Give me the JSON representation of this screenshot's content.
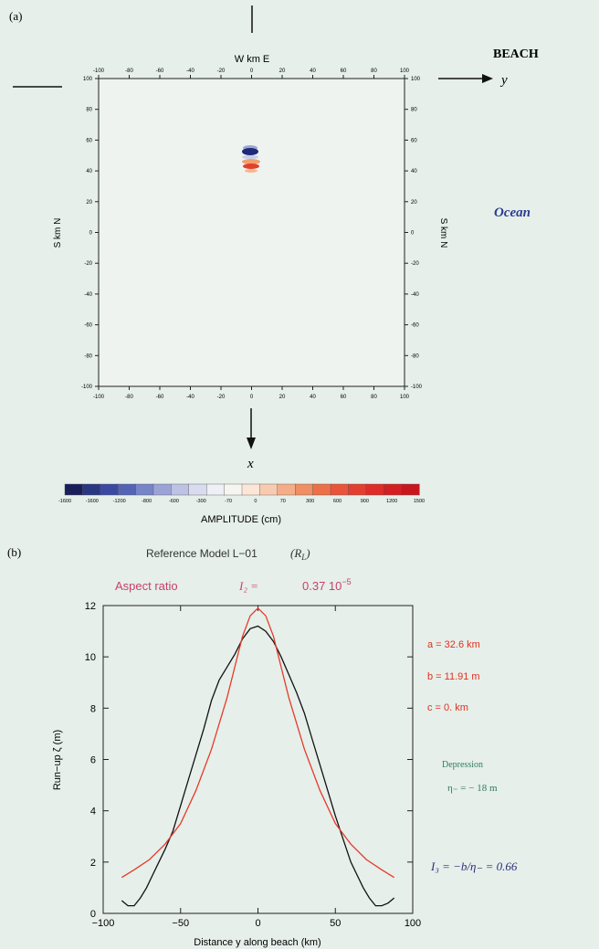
{
  "panel_a": {
    "label": "(a)",
    "top_axis_label": "W km E",
    "left_axis_label": "S km N",
    "right_axis_label": "S km N",
    "x_arrow_label": "x",
    "y_arrow_label": "y",
    "beach_label": "BEACH",
    "ocean_label": "Ocean",
    "tick_values_horizontal": [
      "-100",
      "-80",
      "-60",
      "-40",
      "-20",
      "0",
      "20",
      "40",
      "60",
      "80",
      "100"
    ],
    "tick_values_vertical": [
      "100",
      "80",
      "60",
      "40",
      "20",
      "0",
      "-20",
      "-40",
      "-60",
      "-80",
      "-100"
    ],
    "colorbar": {
      "title": "AMPLITUDE (cm)",
      "tick_labels": [
        "-1600",
        "-1600",
        "-1200",
        "-800",
        "-600",
        "-300",
        "-70",
        "0",
        "70",
        "300",
        "600",
        "900",
        "1200",
        "1500"
      ],
      "colors": [
        "#1a1f5c",
        "#2a3680",
        "#3b4aa0",
        "#5563b5",
        "#7784c8",
        "#9ba3d6",
        "#bcc2e3",
        "#d8dcee",
        "#eef0f6",
        "#f7f5f2",
        "#fbe6d8",
        "#f8cbb0",
        "#f4ad88",
        "#f08f63",
        "#ec7048",
        "#e8553a",
        "#e33f30",
        "#de2c28",
        "#d31f22",
        "#c8161f"
      ]
    }
  },
  "panel_b": {
    "label": "(b)",
    "title": "Reference Model L−01",
    "title_model": "(R",
    "title_model_sub": "L",
    "title_model_end": ")",
    "aspect_label": "Aspect ratio",
    "aspect_formula": "I₂ =",
    "aspect_value": "0.37 10",
    "aspect_exp": "−5",
    "param_a": "a = 32.6  km",
    "param_b": "b = 11.91  m",
    "param_c": "c = 0.  km",
    "depression_label": "Depression",
    "depression_value": "η₋ = − 18   m",
    "i3_formula": "I₃ = −b/η₋ = 0.66",
    "colors": {
      "title": "#333333",
      "aspect": "#c8406a",
      "params": "#e03020",
      "depression": "#2e7d5a",
      "i3": "#2b2f7a",
      "black_curve": "#111111",
      "red_curve": "#e53a2a"
    }
  },
  "chart_data": {
    "type": "line",
    "title": "Reference Model L−01",
    "xlabel": "Distance y along beach (km)",
    "ylabel": "Run−up ζ (m)",
    "xlim": [
      -100,
      100
    ],
    "ylim": [
      0,
      12
    ],
    "xticks": [
      -100,
      -50,
      0,
      50,
      100
    ],
    "yticks": [
      0,
      2,
      4,
      6,
      8,
      10,
      12
    ],
    "series": [
      {
        "color": "#111111",
        "x": [
          -88,
          -84,
          -80,
          -76,
          -72,
          -68,
          -64,
          -60,
          -55,
          -50,
          -45,
          -40,
          -35,
          -30,
          -25,
          -20,
          -15,
          -10,
          -5,
          0,
          5,
          10,
          15,
          20,
          25,
          30,
          35,
          40,
          45,
          50,
          55,
          60,
          64,
          68,
          72,
          76,
          80,
          84,
          88
        ],
        "y": [
          0.5,
          0.3,
          0.3,
          0.6,
          1.0,
          1.5,
          2.0,
          2.5,
          3.2,
          4.2,
          5.2,
          6.2,
          7.2,
          8.3,
          9.1,
          9.6,
          10.1,
          10.7,
          11.1,
          11.2,
          11.0,
          10.6,
          10.0,
          9.3,
          8.6,
          7.8,
          6.8,
          5.8,
          4.8,
          3.8,
          2.9,
          2.0,
          1.5,
          1.0,
          0.6,
          0.3,
          0.3,
          0.4,
          0.6
        ]
      },
      {
        "color": "#e53a2a",
        "x": [
          -88,
          -80,
          -70,
          -60,
          -50,
          -40,
          -30,
          -20,
          -15,
          -10,
          -5,
          0,
          5,
          10,
          15,
          20,
          30,
          40,
          50,
          60,
          70,
          80,
          88
        ],
        "y": [
          1.4,
          1.7,
          2.1,
          2.7,
          3.5,
          4.8,
          6.4,
          8.4,
          9.6,
          10.8,
          11.6,
          11.9,
          11.6,
          10.8,
          9.6,
          8.4,
          6.4,
          4.8,
          3.5,
          2.7,
          2.1,
          1.7,
          1.4
        ]
      }
    ]
  }
}
